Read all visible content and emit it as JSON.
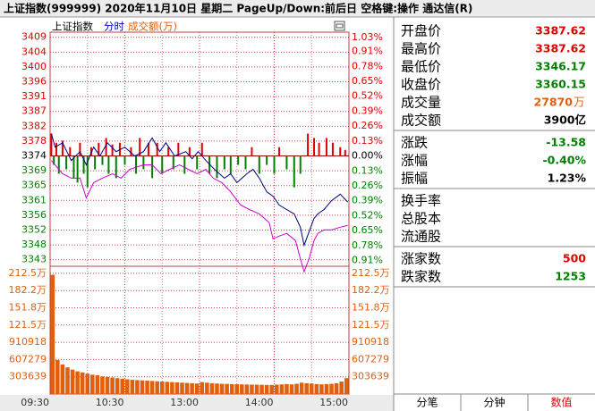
{
  "header": {
    "title": "上证指数(999999)  2020年11月10日 星期二 PageUp/Down:前后日 空格键:操作 通达信(R)"
  },
  "chart_data": {
    "type": "line",
    "pane_title": "上证指数",
    "up_color": "#e00000",
    "down_color": "#008000",
    "grid": true,
    "xlim": [
      0,
      240
    ],
    "xticks": [
      {
        "value": 0,
        "label": "09:30"
      },
      {
        "value": 60,
        "label": "10:30"
      },
      {
        "value": 120,
        "label": "13:00"
      },
      {
        "value": 180,
        "label": "14:00"
      },
      {
        "value": 240,
        "label": "15:00"
      }
    ],
    "ylim": [
      3338,
      3410.6
    ],
    "yticks": [
      {
        "value": 3408.57,
        "label": "3409"
      },
      {
        "value": 3404.22,
        "label": "3404"
      },
      {
        "value": 3399.86,
        "label": "3400"
      },
      {
        "value": 3395.51,
        "label": "3396"
      },
      {
        "value": 3391.15,
        "label": "3391"
      },
      {
        "value": 3386.8,
        "label": "3387"
      },
      {
        "value": 3382.44,
        "label": "3382"
      },
      {
        "value": 3378.09,
        "label": "3378"
      },
      {
        "value": 3373.73,
        "label": "3374"
      },
      {
        "value": 3369.38,
        "label": "3369"
      },
      {
        "value": 3365.02,
        "label": "3365"
      },
      {
        "value": 3360.67,
        "label": "3361"
      },
      {
        "value": 3356.31,
        "label": "3356"
      },
      {
        "value": 3351.96,
        "label": "3352"
      },
      {
        "value": 3347.6,
        "label": "3348"
      },
      {
        "value": 3343.25,
        "label": "3343"
      }
    ],
    "y2lim": [
      -1.059,
      1.0932
    ],
    "y2ticks": [
      {
        "value": 1.03,
        "label": "1.03%"
      },
      {
        "value": 0.91,
        "label": "0.91%"
      },
      {
        "value": 0.78,
        "label": "0.78%"
      },
      {
        "value": 0.65,
        "label": "0.65%"
      },
      {
        "value": 0.52,
        "label": "0.52%"
      },
      {
        "value": 0.39,
        "label": "0.39%"
      },
      {
        "value": 0.26,
        "label": "0.26%"
      },
      {
        "value": 0.13,
        "label": "0.13%"
      },
      {
        "value": 0,
        "label": "0.00%"
      },
      {
        "value": -0.13,
        "label": "0.13%"
      },
      {
        "value": -0.26,
        "label": "0.26%"
      },
      {
        "value": -0.39,
        "label": "0.39%"
      },
      {
        "value": -0.52,
        "label": "0.52%"
      },
      {
        "value": -0.65,
        "label": "0.65%"
      },
      {
        "value": -0.78,
        "label": "0.78%"
      },
      {
        "value": -0.91,
        "label": "0.91%"
      }
    ],
    "series": [
      {
        "name": "分时",
        "color": "#000080",
        "x": [
          1,
          4,
          10,
          17,
          24,
          29,
          35,
          40,
          46,
          53,
          60,
          68,
          75,
          82,
          88,
          93,
          100,
          109,
          114,
          119,
          125,
          132,
          140,
          145,
          150,
          158,
          163,
          168,
          174,
          179,
          184,
          190,
          196,
          201,
          204,
          208,
          212,
          215,
          220,
          226,
          233,
          239
        ],
        "values": [
          3380.3,
          3376.3,
          3377.6,
          3372.4,
          3375.0,
          3371.1,
          3376.3,
          3373.7,
          3377.6,
          3375.0,
          3376.3,
          3373.7,
          3375.0,
          3379.0,
          3375.0,
          3377.6,
          3373.7,
          3375.0,
          3372.9,
          3375.0,
          3372.4,
          3369.8,
          3367.2,
          3368.5,
          3365.9,
          3368.5,
          3369.8,
          3367.2,
          3363.2,
          3361.9,
          3359.3,
          3358.0,
          3356.7,
          3352.8,
          3347.5,
          3351.5,
          3355.4,
          3356.7,
          3358.0,
          3360.6,
          3362.5,
          3360.2
        ]
      },
      {
        "color": "#d000d0",
        "x": [
          1,
          10,
          17,
          24,
          29,
          35,
          42,
          50,
          57,
          64,
          75,
          82,
          89,
          96,
          104,
          111,
          118,
          125,
          131,
          138,
          145,
          153,
          160,
          168,
          176,
          179,
          184,
          190,
          197,
          201,
          204,
          208,
          212,
          215,
          220,
          226,
          233,
          239
        ],
        "values": [
          3372.4,
          3368.5,
          3367.2,
          3367.2,
          3361.4,
          3365.9,
          3367.2,
          3368.5,
          3367.2,
          3369.8,
          3371.1,
          3371.1,
          3368.5,
          3369.8,
          3371.1,
          3369.8,
          3368.5,
          3369.8,
          3367.2,
          3365.9,
          3363.2,
          3359.3,
          3358.0,
          3356.7,
          3354.1,
          3349.4,
          3350.2,
          3351.0,
          3348.9,
          3343.6,
          3339.7,
          3343.6,
          3348.9,
          3351.0,
          3352.0,
          3352.0,
          3352.8,
          3353.3
        ]
      }
    ],
    "bars": {
      "x": [
        1,
        3,
        5,
        7,
        10,
        13,
        16,
        19,
        22,
        24,
        27,
        30,
        33,
        36,
        39,
        42,
        45,
        47,
        50,
        53,
        56,
        60,
        65,
        69,
        72,
        75,
        79,
        82,
        86,
        90,
        95,
        99,
        103,
        108,
        112,
        118,
        122,
        128,
        134,
        140,
        145,
        151,
        157,
        162,
        168,
        174,
        180,
        184,
        190,
        196,
        201,
        207,
        212,
        216,
        222,
        227,
        233,
        237
      ],
      "values": [
        3380.3,
        3371.1,
        3377.6,
        3368.5,
        3378.2,
        3369.8,
        3376.3,
        3367.2,
        3365.9,
        3377.6,
        3368.5,
        3364.5,
        3376.3,
        3369.8,
        3377.6,
        3371.1,
        3379.0,
        3368.5,
        3377.1,
        3367.2,
        3377.6,
        3371.1,
        3376.3,
        3368.5,
        3379.0,
        3369.8,
        3377.6,
        3367.2,
        3377.6,
        3368.5,
        3376.3,
        3369.8,
        3377.6,
        3368.5,
        3376.3,
        3369.8,
        3377.6,
        3368.5,
        3367.2,
        3369.8,
        3368.5,
        3371.1,
        3369.8,
        3376.3,
        3368.5,
        3371.1,
        3368.5,
        3376.3,
        3369.8,
        3364.5,
        3368.5,
        3380.3,
        3379.0,
        3377.6,
        3379.0,
        3377.6,
        3376.3,
        3375.5
      ]
    },
    "volume": {
      "name": "成交额(万)",
      "color": "#e0600f",
      "ylim": [
        0,
        2250000
      ],
      "yticks": [
        {
          "value": 2125473,
          "label": "212.5万"
        },
        {
          "value": 1821834,
          "label": "182.2万"
        },
        {
          "value": 1518195,
          "label": "151.8万"
        },
        {
          "value": 1214556,
          "label": "121.5万"
        },
        910918,
        607279,
        303639
      ],
      "x": [
        0,
        4,
        8,
        12,
        16,
        20,
        24,
        28,
        32,
        36,
        40,
        44,
        48,
        52,
        56,
        60,
        64,
        68,
        72,
        76,
        80,
        84,
        88,
        92,
        96,
        100,
        104,
        108,
        112,
        116,
        120,
        124,
        128,
        132,
        136,
        140,
        144,
        148,
        152,
        156,
        160,
        164,
        168,
        172,
        176,
        180,
        184,
        188,
        192,
        196,
        200,
        204,
        208,
        212,
        216,
        220,
        224,
        228,
        232,
        236
      ],
      "values": [
        2100000,
        600000,
        520000,
        470000,
        430000,
        400000,
        380000,
        360000,
        340000,
        330000,
        310000,
        300000,
        290000,
        280000,
        270000,
        260000,
        250000,
        245000,
        240000,
        235000,
        230000,
        225000,
        220000,
        215000,
        210000,
        205000,
        200000,
        195000,
        190000,
        185000,
        210000,
        200000,
        190000,
        185000,
        180000,
        178000,
        175000,
        172000,
        170000,
        168000,
        165000,
        165000,
        162000,
        160000,
        160000,
        165000,
        170000,
        175000,
        170000,
        180000,
        200000,
        190000,
        185000,
        175000,
        170000,
        175000,
        180000,
        190000,
        220000,
        280000
      ]
    }
  },
  "panel": {
    "groups": [
      [
        {
          "label": "开盘价",
          "value": "3387.62",
          "color": "#e00000"
        },
        {
          "label": "最高价",
          "value": "3387.62",
          "color": "#e00000"
        },
        {
          "label": "最低价",
          "value": "3346.17",
          "color": "#008000"
        },
        {
          "label": "收盘价",
          "value": "3360.15",
          "color": "#008000"
        },
        {
          "label": "成交量",
          "value": "27870",
          "unit": "万",
          "color": "#e0600f"
        },
        {
          "label": "成交额",
          "value": "3900亿",
          "color": "#000000"
        }
      ],
      [
        {
          "label": "涨跌",
          "value": "-13.58",
          "color": "#008000"
        },
        {
          "label": "涨幅",
          "value": "-0.40%",
          "color": "#008000"
        },
        {
          "label": "振幅",
          "value": "1.23%",
          "color": "#000000"
        }
      ],
      [
        {
          "label": "换手率"
        },
        {
          "label": "总股本"
        },
        {
          "label": "流通股"
        }
      ],
      [
        {
          "label": "涨家数",
          "value": "500",
          "color": "#e00000"
        },
        {
          "label": "跌家数",
          "value": "1253",
          "color": "#008000"
        }
      ]
    ]
  },
  "tabs": {
    "items": [
      "分笔",
      "分钟",
      "数值"
    ],
    "active": 2
  }
}
